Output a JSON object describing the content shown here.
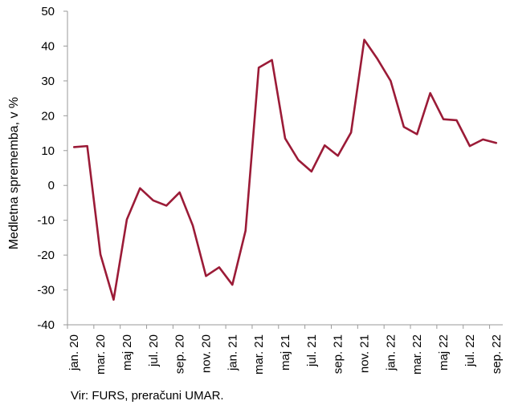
{
  "chart_data": {
    "type": "line",
    "title": "",
    "xlabel": "",
    "ylabel": "Medletna sprememba, v %",
    "ylim": [
      -40,
      50
    ],
    "yticks": [
      -40,
      -30,
      -20,
      -10,
      0,
      10,
      20,
      30,
      40,
      50
    ],
    "ytick_labels": [
      "-40",
      "-30",
      "-20",
      "-10",
      "0",
      "10",
      "20",
      "30",
      "40",
      "50"
    ],
    "grid": false,
    "legend": "none",
    "x": [
      "jan. 20",
      "feb. 20",
      "mar. 20",
      "apr. 20",
      "maj 20",
      "jun. 20",
      "jul. 20",
      "avg. 20",
      "sep. 20",
      "okt. 20",
      "nov. 20",
      "dec. 20",
      "jan. 21",
      "feb. 21",
      "mar. 21",
      "apr. 21",
      "maj 21",
      "jun. 21",
      "jul. 21",
      "avg. 21",
      "sep. 21",
      "okt. 21",
      "nov. 21",
      "dec. 21",
      "jan. 22",
      "feb. 22",
      "mar. 22",
      "apr. 22",
      "maj 22",
      "jun. 22",
      "jul. 22",
      "avg. 22",
      "sep. 22"
    ],
    "xtick_labels": [
      "jan. 20",
      "mar. 20",
      "maj 20",
      "jul. 20",
      "sep. 20",
      "nov. 20",
      "jan. 21",
      "mar. 21",
      "maj 21",
      "jul. 21",
      "sep. 21",
      "nov. 21",
      "jan. 22",
      "mar. 22",
      "maj 22",
      "jul. 22",
      "sep. 22"
    ],
    "series": [
      {
        "color": "#9b1b37",
        "values": [
          11.0,
          11.3,
          -19.8,
          -32.8,
          -9.8,
          -0.8,
          -4.3,
          -5.8,
          -2.0,
          -11.5,
          -26.0,
          -23.5,
          -28.5,
          -13.0,
          33.8,
          36.0,
          13.5,
          7.3,
          4.0,
          11.5,
          8.5,
          15.2,
          41.8,
          36.3,
          30.0,
          16.8,
          14.7,
          26.5,
          19.0,
          18.7,
          11.3,
          13.2,
          12.2
        ]
      }
    ],
    "axis_color": "#9a9a9a"
  },
  "source_text": "Vir: FURS, preračuni UMAR."
}
